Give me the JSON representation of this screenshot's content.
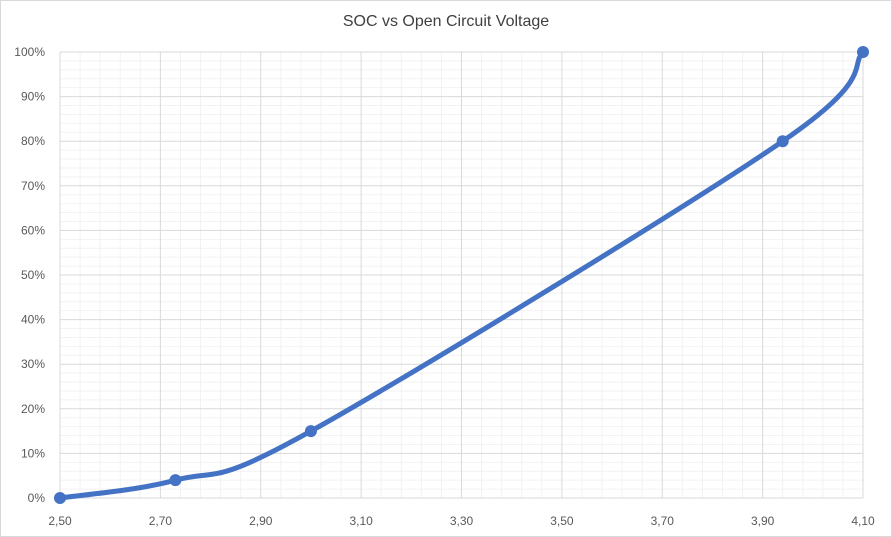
{
  "chart_data": {
    "type": "line",
    "title": "SOC vs Open Circuit Voltage",
    "xlabel": "",
    "ylabel": "",
    "xlim": [
      2.5,
      4.1
    ],
    "ylim": [
      0,
      100
    ],
    "x_ticks": [
      "2,50",
      "2,70",
      "2,90",
      "3,10",
      "3,30",
      "3,50",
      "3,70",
      "3,90",
      "4,10"
    ],
    "y_ticks": [
      "0%",
      "10%",
      "20%",
      "30%",
      "40%",
      "50%",
      "60%",
      "70%",
      "80%",
      "90%",
      "100%"
    ],
    "grid": true,
    "legend": "none",
    "series": [
      {
        "color": "#4472C4",
        "smooth": true,
        "x": [
          2.5,
          2.73,
          3.0,
          3.94,
          4.1
        ],
        "y": [
          0,
          4,
          15,
          80,
          100
        ]
      }
    ]
  }
}
